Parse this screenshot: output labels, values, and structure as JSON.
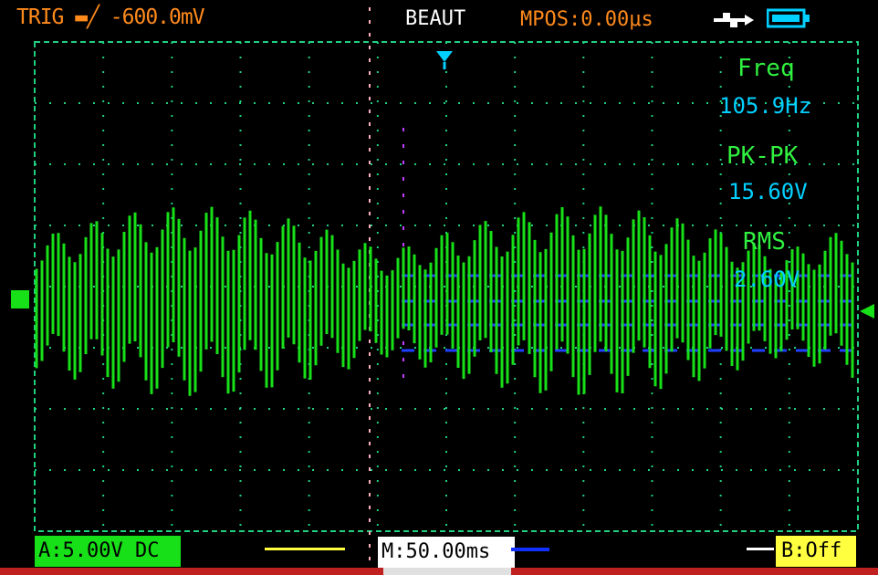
{
  "top_bar": {
    "trigger_status": "TRIG ▬╱ -600.0mV",
    "mode": "BEAUT",
    "mpos": "MPOS:0.00μs",
    "usb_icon": "usb-icon",
    "battery_icon": "battery-icon"
  },
  "measurements": {
    "freq_label": "Freq",
    "freq_value": "105.9Hz",
    "pkpk_label": "PK-PK",
    "pkpk_value": "15.60V",
    "rms_label": "RMS",
    "rms_value": "2.60V"
  },
  "bottom_bar": {
    "channel_a": "A:5.00V DC",
    "timebase": "M:50.00ms",
    "status": "B:Off"
  },
  "colors": {
    "trace": "#18e018",
    "grid": "#20d080",
    "accent_orange": "#ff8a1c",
    "accent_cyan": "#00d0ff",
    "status_yellow": "#ffff40"
  }
}
